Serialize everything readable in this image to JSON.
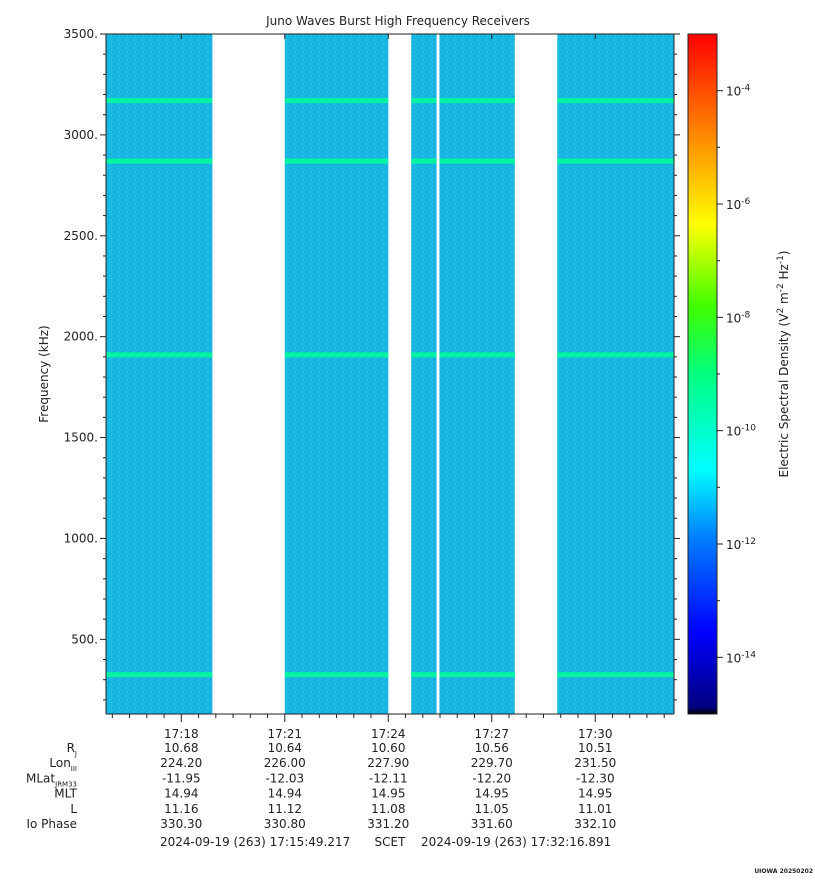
{
  "chart_data": {
    "type": "heatmap",
    "title": "Juno Waves Burst High Frequency Receivers",
    "ylabel": "Frequency (kHz)",
    "ylim": [
      130,
      3500
    ],
    "yticks": [
      "500.",
      "1000.",
      "1500.",
      "2000.",
      "2500.",
      "3000.",
      "3500."
    ],
    "ytick_values": [
      500,
      1000,
      1500,
      2000,
      2500,
      3000,
      3500
    ],
    "x_time_start": "17:15:49",
    "x_time_end": "17:32:17",
    "xticks": [
      "17:18",
      "17:21",
      "17:24",
      "17:27",
      "17:30"
    ],
    "xtick_times": [
      "17:18:00",
      "17:21:00",
      "17:24:00",
      "17:27:00",
      "17:30:00"
    ],
    "data_segments": [
      {
        "start": "17:15:49",
        "end": "17:18:54"
      },
      {
        "start": "17:21:00",
        "end": "17:24:00"
      },
      {
        "start": "17:24:40",
        "end": "17:25:24"
      },
      {
        "start": "17:25:29",
        "end": "17:27:40"
      },
      {
        "start": "17:28:54",
        "end": "17:32:17"
      }
    ],
    "emission_lines_khz": [
      3170,
      2870,
      1910,
      325
    ],
    "background_level_exp": -11.6,
    "line_level_exp": -9.3,
    "colorbar": {
      "label_parts": [
        "Electric Spectral Density (V",
        "2",
        " m",
        "-2",
        " Hz",
        "-1",
        ")"
      ],
      "range_exp": [
        -15,
        -3
      ],
      "ticks": [
        {
          "base": "10",
          "exp": "-4",
          "value": -4
        },
        {
          "base": "10",
          "exp": "-6",
          "value": -6
        },
        {
          "base": "10",
          "exp": "-8",
          "value": -8
        },
        {
          "base": "10",
          "exp": "-10",
          "value": -10
        },
        {
          "base": "10",
          "exp": "-12",
          "value": -12
        },
        {
          "base": "10",
          "exp": "-14",
          "value": -14
        }
      ]
    },
    "ephemeris": {
      "rows": [
        {
          "label": "R",
          "sub": "J",
          "values": [
            "10.68",
            "10.64",
            "10.60",
            "10.56",
            "10.51"
          ]
        },
        {
          "label": "Lon",
          "sub": "III",
          "values": [
            "224.20",
            "226.00",
            "227.90",
            "229.70",
            "231.50"
          ]
        },
        {
          "label": "MLat",
          "sub": "JRM33",
          "values": [
            "-11.95",
            "-12.03",
            "-12.11",
            "-12.20",
            "-12.30"
          ]
        },
        {
          "label": "MLT",
          "sub": "",
          "values": [
            "14.94",
            "14.94",
            "14.95",
            "14.95",
            "14.95"
          ]
        },
        {
          "label": "L",
          "sub": "",
          "values": [
            "11.16",
            "11.12",
            "11.08",
            "11.05",
            "11.01"
          ]
        },
        {
          "label": "Io Phase",
          "sub": "",
          "values": [
            "330.30",
            "330.80",
            "331.20",
            "331.60",
            "332.10"
          ]
        }
      ]
    },
    "footer": {
      "start": "2024-09-19 (263) 17:15:49.217",
      "mid": "SCET",
      "end": "2024-09-19 (263) 17:32:16.891"
    },
    "credit": "UIOWA 20250202"
  }
}
